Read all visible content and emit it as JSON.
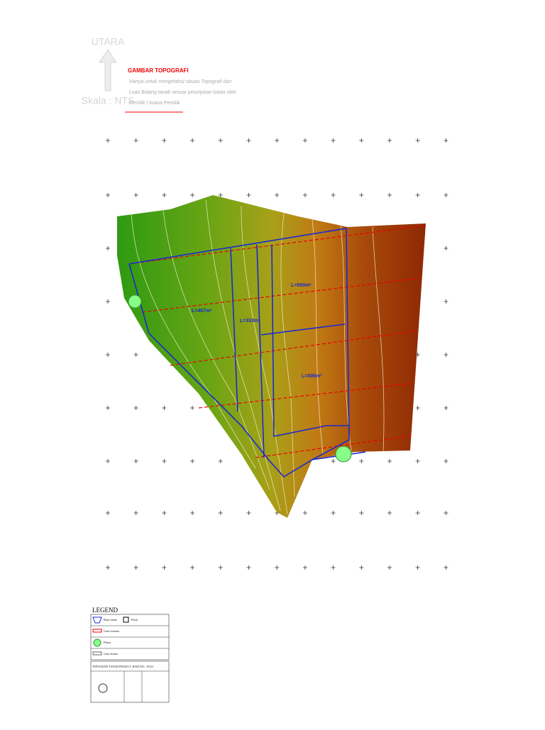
{
  "header": {
    "north": "UTARA",
    "scale": "Skala : NTS",
    "title": "GAMBAR TOPOGRAFI",
    "note": [
      "Hanya untuk mengetahui situasi Topografi dan",
      "Luas Bidang tanah sesuai petunjukan batas oleh",
      "Pemilik / kuasa Pemilik"
    ]
  },
  "plots": [
    "L=467m²",
    "L=333m²",
    "L=500m²",
    "L=500m²"
  ],
  "legend": {
    "title": "LEGEND",
    "items": [
      "Batas tanah",
      "Patok",
      "Garis rencana",
      "Pohon",
      "Garis kontur"
    ]
  },
  "title_block": {
    "project": "TOPOGRAFI TANAH PROJECT, BADUNG - BALI"
  }
}
